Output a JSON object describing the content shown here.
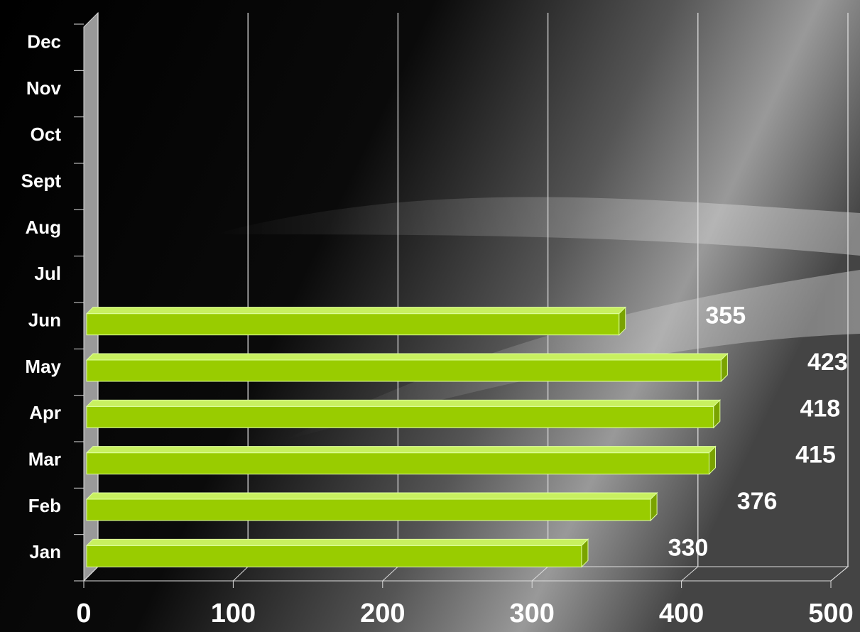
{
  "chart_data": {
    "type": "bar",
    "orientation": "horizontal",
    "categories": [
      "Jan",
      "Feb",
      "Mar",
      "Apr",
      "May",
      "Jun",
      "Jul",
      "Aug",
      "Sept",
      "Oct",
      "Nov",
      "Dec"
    ],
    "values": [
      330,
      376,
      415,
      418,
      423,
      355,
      null,
      null,
      null,
      null,
      null,
      null
    ],
    "color": "#99cc00",
    "xlim": [
      0,
      500
    ],
    "xticks": [
      0,
      100,
      200,
      300,
      400,
      500
    ],
    "grid": true
  }
}
